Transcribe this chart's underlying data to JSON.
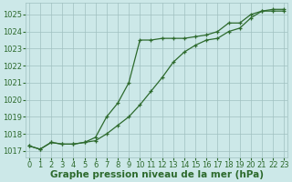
{
  "line1_x": [
    0,
    1,
    2,
    3,
    4,
    5,
    6,
    7,
    8,
    9,
    10,
    11,
    12,
    13,
    14,
    15,
    16,
    17,
    18,
    19,
    20,
    21,
    22,
    23
  ],
  "line1_y": [
    1017.3,
    1017.1,
    1017.5,
    1017.4,
    1017.4,
    1017.5,
    1017.6,
    1018.0,
    1018.5,
    1019.0,
    1019.7,
    1020.5,
    1021.3,
    1022.2,
    1022.8,
    1023.2,
    1023.5,
    1023.6,
    1024.0,
    1024.2,
    1024.8,
    1025.2,
    1025.2,
    1025.2
  ],
  "line2_x": [
    0,
    1,
    2,
    3,
    4,
    5,
    6,
    7,
    8,
    9,
    10,
    11,
    12,
    13,
    14,
    15,
    16,
    17,
    18,
    19,
    20,
    21,
    22,
    23
  ],
  "line2_y": [
    1017.3,
    1017.1,
    1017.5,
    1017.4,
    1017.4,
    1017.5,
    1017.8,
    1019.0,
    1019.8,
    1021.0,
    1023.5,
    1023.5,
    1023.6,
    1023.6,
    1023.6,
    1023.7,
    1023.8,
    1024.0,
    1024.5,
    1024.5,
    1025.0,
    1025.2,
    1025.3,
    1025.3
  ],
  "line_color": "#2d6a2d",
  "bg_color": "#cce8e8",
  "grid_color": "#a0c0c0",
  "ylim_min": 1016.6,
  "ylim_max": 1025.7,
  "xlim_min": -0.3,
  "xlim_max": 23.3,
  "yticks": [
    1017,
    1018,
    1019,
    1020,
    1021,
    1022,
    1023,
    1024,
    1025
  ],
  "xticks": [
    0,
    1,
    2,
    3,
    4,
    5,
    6,
    7,
    8,
    9,
    10,
    11,
    12,
    13,
    14,
    15,
    16,
    17,
    18,
    19,
    20,
    21,
    22,
    23
  ],
  "xlabel": "Graphe pression niveau de la mer (hPa)",
  "xlabel_fontsize": 7.5,
  "tick_fontsize": 6.0,
  "marker": "+",
  "linewidth": 0.9,
  "markersize": 3.5,
  "markeredgewidth": 0.9
}
